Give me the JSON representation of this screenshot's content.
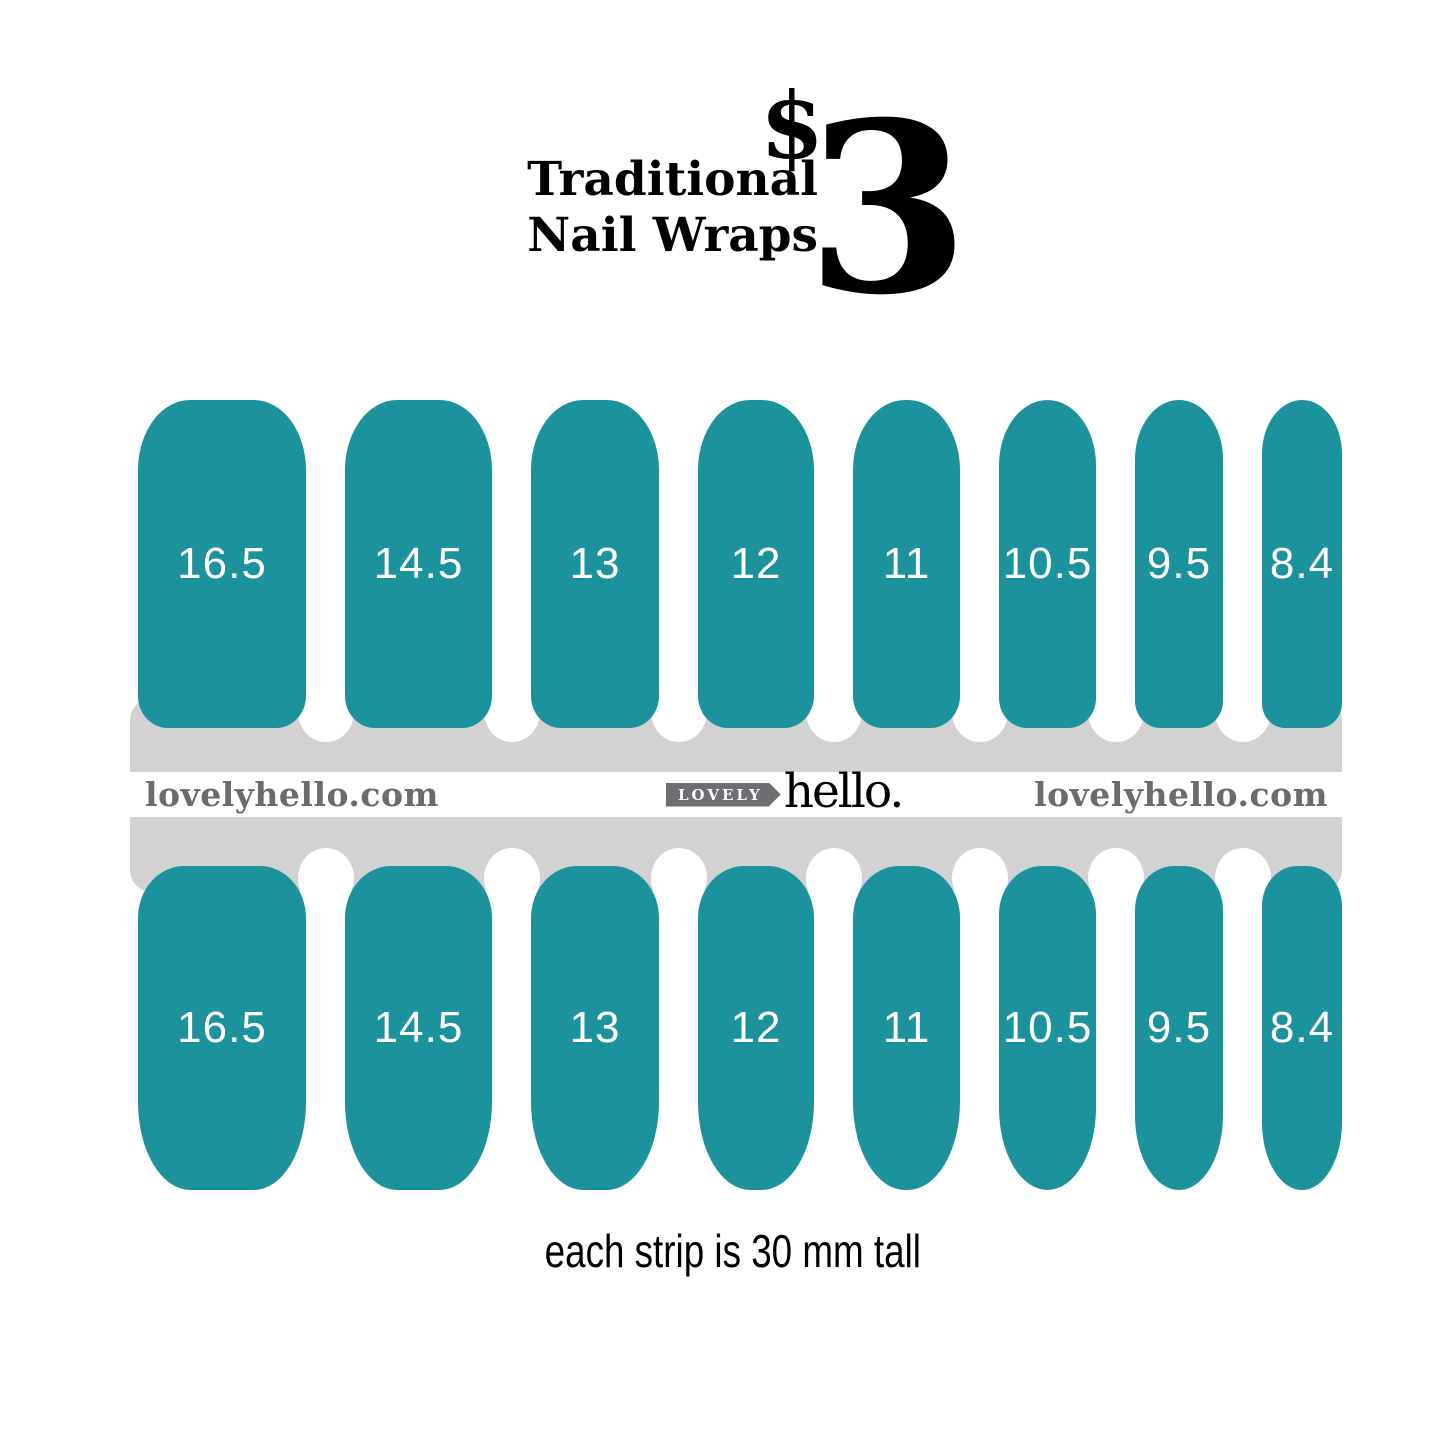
{
  "header": {
    "title_line1": "Traditional",
    "title_line2": "Nail Wraps",
    "currency": "$",
    "price": "3"
  },
  "nails": {
    "sizes": [
      "16.5",
      "14.5",
      "13",
      "12",
      "11",
      "10.5",
      "9.5",
      "8.4"
    ],
    "rows": 2
  },
  "band": {
    "url_left": "lovelyhello.com",
    "url_right": "lovelyhello.com",
    "logo_badge": "LOVELY",
    "logo_text": "hello."
  },
  "footer": {
    "caption": "each strip is 30 mm tall"
  },
  "colors": {
    "teal": "#1b929c",
    "band_gray": "#d2d2d3",
    "text_gray": "#6a6b6e",
    "badge_gray": "#6d6e71",
    "black": "#000000",
    "white": "#ffffff"
  }
}
